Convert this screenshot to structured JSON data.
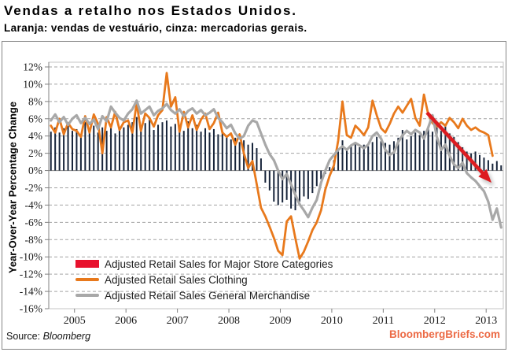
{
  "title": "Vendas a retalho nos Estados Unidos.",
  "subtitle": "Laranja: vendas de vestuário, cinza: mercadorias gerais.",
  "source": {
    "label": "Source:",
    "value": "Bloomberg"
  },
  "watermark": "BloombergBriefs.com",
  "colors": {
    "bar": "#17243a",
    "legend_bar_swatch": "#e8112d",
    "clothing_line": "#e8791c",
    "general_line": "#a8a8a8",
    "arrow": "#dd1b20",
    "watermark": "#ec6a45",
    "gridline": "#a3a3a3",
    "axis": "#808080",
    "tick_text": "#1a1a1a"
  },
  "chart_data": {
    "type": "bar+line",
    "x_unit": "month",
    "x_tick_labels": [
      "2005",
      "2006",
      "2007",
      "2008",
      "2009",
      "2010",
      "2011",
      "2012",
      "2013"
    ],
    "x_tick_indices": [
      6,
      18,
      30,
      42,
      54,
      66,
      78,
      90,
      102
    ],
    "ylabel": "Year-Over-Year Percentage Change",
    "ylim": [
      -16,
      12
    ],
    "ytick_step": 2,
    "ytick_suffix": "%",
    "grid": "dashed horizontal",
    "legend_position": "inside bottom-left",
    "series": [
      {
        "name": "Adjusted Retail Sales for Major Store Categories",
        "type": "bar",
        "color": "#17243a",
        "legend_color": "#e8112d",
        "values": [
          4.5,
          5.0,
          4.4,
          4.9,
          5.3,
          4.6,
          4.8,
          4.2,
          5.6,
          4.5,
          5.2,
          4.4,
          5.0,
          4.6,
          5.4,
          4.3,
          4.7,
          5.0,
          5.3,
          5.6,
          6.2,
          4.9,
          5.5,
          5.9,
          4.7,
          5.3,
          5.6,
          5.8,
          5.1,
          5.4,
          5.2,
          4.6,
          5.7,
          4.9,
          5.3,
          4.5,
          4.9,
          4.4,
          4.8,
          4.2,
          4.6,
          4.0,
          3.6,
          3.8,
          3.3,
          3.5,
          3.0,
          3.2,
          2.6,
          1.4,
          -1.4,
          -2.3,
          -3.6,
          -4.0,
          -3.7,
          -3.4,
          -4.4,
          -4.6,
          -3.6,
          -3.0,
          -3.3,
          -2.6,
          -1.8,
          -1.0,
          -0.4,
          0.4,
          1.2,
          2.2,
          3.5,
          2.6,
          2.9,
          3.1,
          2.7,
          3.0,
          2.8,
          3.3,
          3.9,
          3.4,
          3.2,
          3.0,
          3.4,
          3.8,
          4.7,
          3.6,
          4.0,
          4.4,
          4.1,
          4.6,
          5.0,
          4.5,
          5.0,
          4.6,
          5.2,
          4.3,
          3.9,
          3.3,
          2.7,
          2.2,
          2.0,
          2.2,
          1.8,
          1.5,
          1.2,
          0.8,
          1.1,
          0.6
        ]
      },
      {
        "name": "Adjusted Retail Sales Clothing",
        "type": "line",
        "color": "#e8791c",
        "legend_color": "#e8791c",
        "values": [
          5.2,
          4.4,
          6.0,
          4.2,
          5.5,
          4.8,
          4.6,
          3.9,
          6.3,
          4.4,
          6.5,
          5.4,
          2.0,
          6.2,
          5.0,
          6.8,
          4.7,
          5.6,
          5.8,
          4.4,
          7.8,
          4.6,
          6.6,
          6.1,
          5.1,
          6.4,
          7.0,
          11.3,
          7.4,
          8.5,
          4.5,
          6.8,
          5.0,
          6.4,
          4.7,
          5.9,
          6.6,
          4.8,
          5.5,
          6.7,
          4.4,
          3.9,
          4.3,
          3.0,
          4.2,
          2.0,
          0.3,
          1.1,
          -1.6,
          -4.3,
          -5.3,
          -6.5,
          -7.8,
          -9.3,
          -9.8,
          -5.9,
          -5.3,
          -7.8,
          -10.2,
          -9.4,
          -8.2,
          -6.9,
          -6.0,
          -4.6,
          -2.2,
          -0.6,
          0.6,
          3.5,
          8.0,
          4.1,
          3.8,
          5.2,
          4.7,
          4.1,
          5.0,
          8.1,
          6.4,
          4.9,
          4.4,
          5.4,
          6.6,
          7.4,
          6.7,
          7.5,
          8.3,
          6.1,
          5.2,
          8.8,
          6.5,
          5.5,
          5.1,
          5.6,
          5.2,
          6.1,
          5.6,
          4.9,
          6.0,
          5.2,
          4.7,
          5.0,
          4.6,
          4.4,
          4.1,
          1.7,
          null,
          null
        ]
      },
      {
        "name": "Adjusted Retail Sales General Merchandise",
        "type": "line",
        "color": "#a8a8a8",
        "legend_color": "#a8a8a8",
        "values": [
          5.8,
          6.5,
          5.6,
          6.2,
          5.3,
          6.0,
          6.4,
          5.5,
          6.1,
          5.4,
          5.9,
          4.8,
          6.3,
          5.7,
          7.4,
          6.7,
          6.1,
          5.8,
          6.6,
          7.1,
          8.1,
          6.6,
          7.0,
          7.4,
          6.4,
          6.9,
          7.2,
          7.7,
          7.0,
          6.6,
          7.1,
          6.3,
          6.9,
          7.2,
          6.6,
          7.0,
          6.4,
          6.7,
          7.1,
          6.1,
          5.6,
          4.9,
          5.3,
          4.3,
          3.7,
          4.0,
          5.2,
          5.8,
          5.6,
          4.3,
          3.0,
          1.9,
          1.2,
          0.0,
          -1.0,
          -0.4,
          -1.6,
          -2.8,
          -3.9,
          -4.6,
          -5.4,
          -4.3,
          -3.4,
          -1.4,
          0.0,
          1.2,
          1.8,
          2.4,
          2.8,
          2.4,
          2.9,
          3.2,
          2.9,
          2.6,
          3.0,
          4.0,
          4.4,
          3.7,
          2.4,
          1.8,
          2.1,
          3.3,
          4.1,
          4.6,
          4.2,
          4.7,
          4.4,
          3.7,
          5.0,
          6.4,
          3.9,
          2.4,
          3.0,
          1.7,
          0.7,
          0.3,
          0.9,
          -0.3,
          -0.8,
          -1.2,
          -1.8,
          -2.4,
          -3.6,
          -5.7,
          -4.4,
          -6.6
        ]
      }
    ],
    "annotation_arrow": {
      "from": [
        543,
        143
      ],
      "to": [
        625,
        232
      ],
      "color": "#dd1b20"
    }
  }
}
